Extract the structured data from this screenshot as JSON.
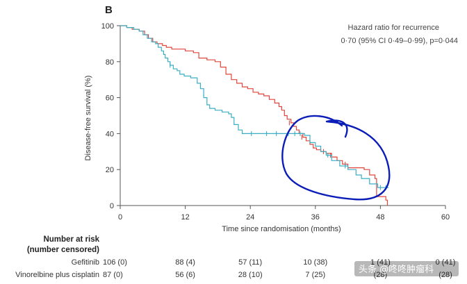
{
  "chart_data": {
    "type": "line",
    "subtype": "kaplan-meier",
    "panel_label": "B",
    "xlabel": "Time since randomisation (months)",
    "ylabel": "Disease-free survival (%)",
    "xlim": [
      0,
      60
    ],
    "ylim": [
      0,
      100
    ],
    "xticks": [
      0,
      12,
      24,
      36,
      48,
      60
    ],
    "yticks": [
      0,
      20,
      40,
      60,
      80,
      100
    ],
    "annotation_lines": [
      "Hazard ratio for recurrence",
      "0·70 (95% CI 0·49–0·99), p=0·044"
    ],
    "series": [
      {
        "name": "Gefitinib",
        "color": "#e0463e",
        "steps": [
          [
            0,
            100
          ],
          [
            1.2,
            99
          ],
          [
            2.2,
            98
          ],
          [
            3.5,
            97
          ],
          [
            4.5,
            95
          ],
          [
            5.2,
            93
          ],
          [
            6,
            91
          ],
          [
            6.8,
            90
          ],
          [
            7.8,
            89
          ],
          [
            8.5,
            88
          ],
          [
            9.5,
            87
          ],
          [
            12,
            86
          ],
          [
            13.5,
            85
          ],
          [
            14.5,
            82
          ],
          [
            16,
            81
          ],
          [
            17.5,
            80
          ],
          [
            18.5,
            77
          ],
          [
            19.5,
            73
          ],
          [
            20.5,
            70
          ],
          [
            21.5,
            68
          ],
          [
            22.5,
            66
          ],
          [
            23.5,
            65
          ],
          [
            24.5,
            63
          ],
          [
            25.5,
            62
          ],
          [
            26.5,
            61
          ],
          [
            27.5,
            59
          ],
          [
            28.5,
            57
          ],
          [
            29.3,
            55
          ],
          [
            29.8,
            53
          ],
          [
            30.3,
            50
          ],
          [
            30.8,
            48
          ],
          [
            31.5,
            46
          ],
          [
            32,
            44
          ],
          [
            32.5,
            42
          ],
          [
            33,
            40
          ],
          [
            33.7,
            38
          ],
          [
            34.3,
            36
          ],
          [
            35,
            34
          ],
          [
            35.6,
            32
          ],
          [
            36.2,
            31
          ],
          [
            37,
            30
          ],
          [
            38,
            29
          ],
          [
            39,
            27
          ],
          [
            40,
            25
          ],
          [
            41,
            23
          ],
          [
            42,
            21
          ],
          [
            45,
            20
          ],
          [
            46,
            17
          ],
          [
            47,
            15
          ],
          [
            47.3,
            5
          ],
          [
            49,
            3
          ],
          [
            49.3,
            0
          ]
        ],
        "end": 49.3,
        "censored": [
          [
            31.2,
            46
          ],
          [
            33.5,
            38
          ],
          [
            37.5,
            30
          ],
          [
            38.8,
            28
          ],
          [
            41.5,
            23
          ]
        ]
      },
      {
        "name": "Vinorelbine plus cisplatin",
        "color": "#3aaec4",
        "steps": [
          [
            0,
            100
          ],
          [
            1.2,
            99
          ],
          [
            2.5,
            98
          ],
          [
            3.5,
            97
          ],
          [
            4.2,
            95
          ],
          [
            5,
            93
          ],
          [
            5.8,
            91
          ],
          [
            6.5,
            90
          ],
          [
            7,
            88
          ],
          [
            7.6,
            86
          ],
          [
            8,
            84
          ],
          [
            8.3,
            82
          ],
          [
            8.8,
            80
          ],
          [
            9.2,
            78
          ],
          [
            9.8,
            76
          ],
          [
            10.5,
            75
          ],
          [
            11,
            73
          ],
          [
            11.8,
            72
          ],
          [
            13,
            71
          ],
          [
            14.2,
            68
          ],
          [
            14.8,
            65
          ],
          [
            15.4,
            60
          ],
          [
            16,
            56
          ],
          [
            16.5,
            54
          ],
          [
            17.5,
            53
          ],
          [
            18.8,
            52
          ],
          [
            20,
            51
          ],
          [
            20.5,
            49
          ],
          [
            21,
            45
          ],
          [
            21.8,
            42
          ],
          [
            22.5,
            40
          ],
          [
            26,
            40
          ],
          [
            34,
            39
          ],
          [
            35,
            35
          ],
          [
            36,
            33
          ],
          [
            37,
            30
          ],
          [
            38,
            28
          ],
          [
            39,
            25
          ],
          [
            40.5,
            22
          ],
          [
            42,
            20
          ],
          [
            43.5,
            17
          ],
          [
            44.5,
            15
          ],
          [
            46,
            12
          ],
          [
            47.5,
            10
          ],
          [
            49.5,
            10
          ]
        ],
        "end": 49.5,
        "censored": [
          [
            9.2,
            78
          ],
          [
            24.2,
            40
          ],
          [
            27,
            40
          ],
          [
            28.8,
            40
          ],
          [
            31,
            40
          ],
          [
            32.2,
            40
          ],
          [
            33.2,
            40
          ],
          [
            38.3,
            28
          ],
          [
            41.5,
            22
          ],
          [
            48,
            10
          ],
          [
            49,
            10
          ]
        ]
      }
    ],
    "number_at_risk": {
      "heading": [
        "Number at risk",
        "(number censored)"
      ],
      "rows": [
        {
          "label": "Gefitinib",
          "values": [
            "106 (0)",
            "88 (4)",
            "57 (11)",
            "10 (38)",
            "1 (41)",
            "0 (41)"
          ]
        },
        {
          "label": "Vinorelbine plus cisplatin",
          "values": [
            "87 (0)",
            "56 (6)",
            "28 (10)",
            "7 (25)",
            "(28)",
            "(28)"
          ]
        }
      ]
    }
  },
  "watermark": {
    "text": "头条 @咚咚肿瘤科"
  },
  "colors": {
    "axis": "#555555",
    "freehand_ring": "#0b1db8"
  }
}
